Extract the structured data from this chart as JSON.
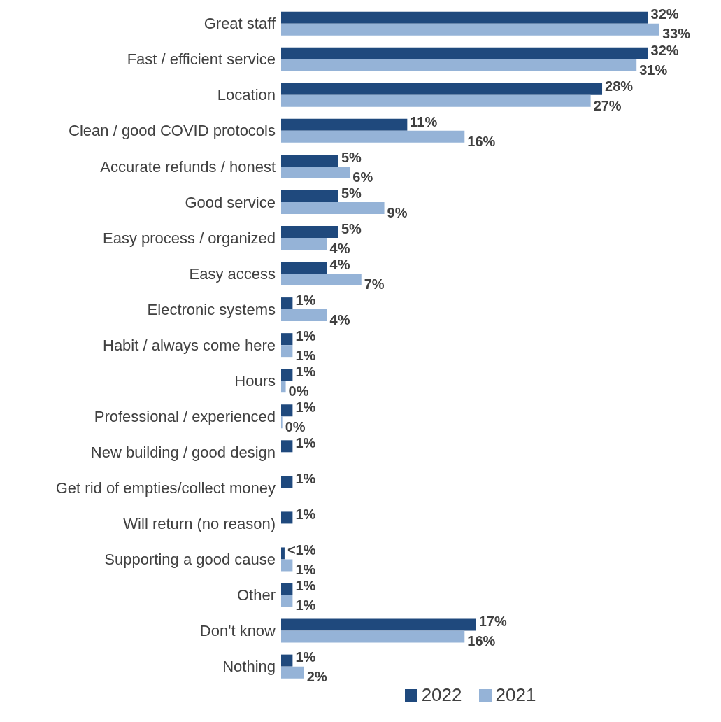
{
  "chart_data": {
    "type": "bar",
    "orientation": "horizontal",
    "categories": [
      "Great staff",
      "Fast / efficient service",
      "Location",
      "Clean / good COVID protocols",
      "Accurate refunds / honest",
      "Good service",
      "Easy process / organized",
      "Easy access",
      "Electronic systems",
      "Habit / always come here",
      "Hours",
      "Professional / experienced",
      "New building / good design",
      "Get rid of empties/collect money",
      "Will return (no reason)",
      "Supporting a good cause",
      "Other",
      "Don't know",
      "Nothing"
    ],
    "series": [
      {
        "name": "2022",
        "color": "#1f497d",
        "values": [
          32,
          32,
          28,
          11,
          5,
          5,
          5,
          4,
          1,
          1,
          1,
          1,
          1,
          1,
          1,
          0.3,
          1,
          17,
          1
        ],
        "value_labels": [
          "32%",
          "32%",
          "28%",
          "11%",
          "5%",
          "5%",
          "5%",
          "4%",
          "1%",
          "1%",
          "1%",
          "1%",
          "1%",
          "1%",
          "1%",
          "<1%",
          "1%",
          "17%",
          "1%"
        ]
      },
      {
        "name": "2021",
        "color": "#95b3d7",
        "values": [
          33,
          31,
          27,
          16,
          6,
          9,
          4,
          7,
          4,
          1,
          0.4,
          0.1,
          null,
          null,
          null,
          1,
          1,
          16,
          2
        ],
        "value_labels": [
          "33%",
          "31%",
          "27%",
          "16%",
          "6%",
          "9%",
          "4%",
          "7%",
          "4%",
          "1%",
          "0%",
          "0%",
          null,
          null,
          null,
          "1%",
          "1%",
          "16%",
          "2%"
        ]
      }
    ],
    "legend": "bottom"
  }
}
